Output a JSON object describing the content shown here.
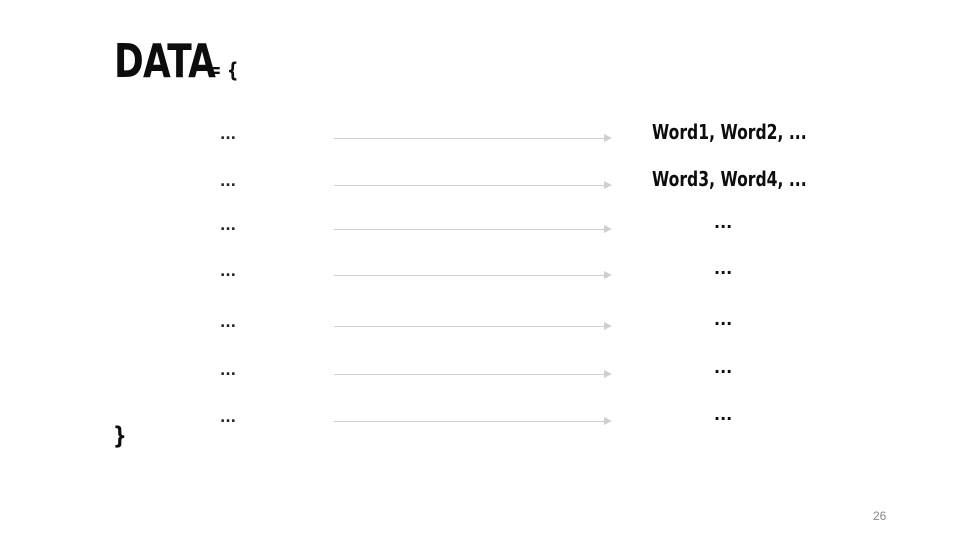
{
  "slide": {
    "title": "DATA",
    "title_operator": "= {",
    "closing_brace": "}",
    "page_number": "26",
    "arrow_color": "#cfcfcf",
    "rows": [
      {
        "left": "...",
        "right": "Word1, Word2, ..."
      },
      {
        "left": "...",
        "right": "Word3, Word4, ..."
      },
      {
        "left": "...",
        "right": "..."
      },
      {
        "left": "...",
        "right": "..."
      },
      {
        "left": "...",
        "right": "..."
      },
      {
        "left": "...",
        "right": "..."
      },
      {
        "left": "...",
        "right": "..."
      }
    ]
  }
}
